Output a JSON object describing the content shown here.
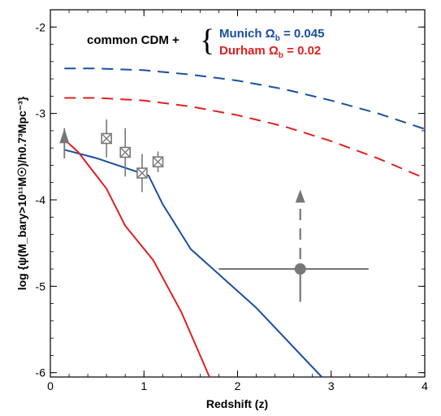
{
  "chart_data": {
    "type": "line",
    "xlabel": "Redshift (z)",
    "ylabel": "log {ψ(M_bary>10¹¹M☉)/h0.7³Mpc⁻³}",
    "xlim": [
      0,
      4
    ],
    "ylim": [
      -6.05,
      -1.8
    ],
    "x_ticks": [
      "0",
      "1",
      "2",
      "3",
      "4"
    ],
    "y_ticks": [
      "-2",
      "-3",
      "-4",
      "-5",
      "-6"
    ],
    "annotation": {
      "lead": "common CDM +",
      "munich_label": "Munich Ω",
      "munich_sub": "b",
      "munich_value": " = 0.045",
      "durham_label": "Durham Ω",
      "durham_sub": "b",
      "durham_value": " = 0.02"
    },
    "series": [
      {
        "name": "Munich",
        "style": "solid",
        "color": "#1a4fa0",
        "points": [
          [
            0.15,
            -3.42
          ],
          [
            0.5,
            -3.52
          ],
          [
            1.05,
            -3.72
          ],
          [
            1.2,
            -4.05
          ],
          [
            1.5,
            -4.57
          ],
          [
            2.2,
            -5.25
          ],
          [
            2.9,
            -6.05
          ]
        ]
      },
      {
        "name": "Durham",
        "style": "solid",
        "color": "#e02020",
        "points": [
          [
            0.15,
            -3.3
          ],
          [
            0.3,
            -3.45
          ],
          [
            0.6,
            -3.87
          ],
          [
            0.8,
            -4.3
          ],
          [
            1.1,
            -4.7
          ],
          [
            1.4,
            -5.3
          ],
          [
            1.6,
            -5.8
          ],
          [
            1.7,
            -6.05
          ]
        ]
      },
      {
        "name": "Munich",
        "style": "dashed",
        "color": "#1a4fa0",
        "points": [
          [
            0.15,
            -2.48
          ],
          [
            0.5,
            -2.48
          ],
          [
            1.0,
            -2.5
          ],
          [
            1.5,
            -2.55
          ],
          [
            2.0,
            -2.62
          ],
          [
            2.5,
            -2.72
          ],
          [
            3.0,
            -2.85
          ],
          [
            3.5,
            -3.0
          ],
          [
            4.0,
            -3.18
          ]
        ]
      },
      {
        "name": "Durham",
        "style": "dashed",
        "color": "#e02020",
        "points": [
          [
            0.15,
            -2.82
          ],
          [
            0.5,
            -2.82
          ],
          [
            1.0,
            -2.85
          ],
          [
            1.5,
            -2.92
          ],
          [
            2.0,
            -3.02
          ],
          [
            2.5,
            -3.15
          ],
          [
            3.0,
            -3.32
          ],
          [
            3.5,
            -3.52
          ],
          [
            4.0,
            -3.75
          ]
        ]
      }
    ],
    "data_points": [
      {
        "x": 0.6,
        "y": -3.29,
        "yerr_lo": 0.22,
        "yerr_hi": 0.22,
        "marker": "boxed-x"
      },
      {
        "x": 0.8,
        "y": -3.45,
        "yerr_lo": 0.28,
        "yerr_hi": 0.28,
        "marker": "boxed-x"
      },
      {
        "x": 0.98,
        "y": -3.69,
        "yerr_lo": 0.22,
        "yerr_hi": 0.22,
        "marker": "boxed-x"
      },
      {
        "x": 1.15,
        "y": -3.56,
        "yerr_lo": 0.12,
        "yerr_hi": 0.12,
        "marker": "boxed-x"
      }
    ],
    "lower_limit_point": {
      "x": 0.15,
      "y": -3.42,
      "yerr_lo": 0.1,
      "yerr_hi": 0.15,
      "marker": "arrow-up"
    },
    "big_point": {
      "x": 2.67,
      "y": -4.8,
      "xerr_lo": 0.87,
      "xerr_hi": 0.73,
      "yerr_lo": 0.38,
      "arrow_to": -3.9,
      "marker": "circle"
    },
    "marker_color": "#777777"
  }
}
